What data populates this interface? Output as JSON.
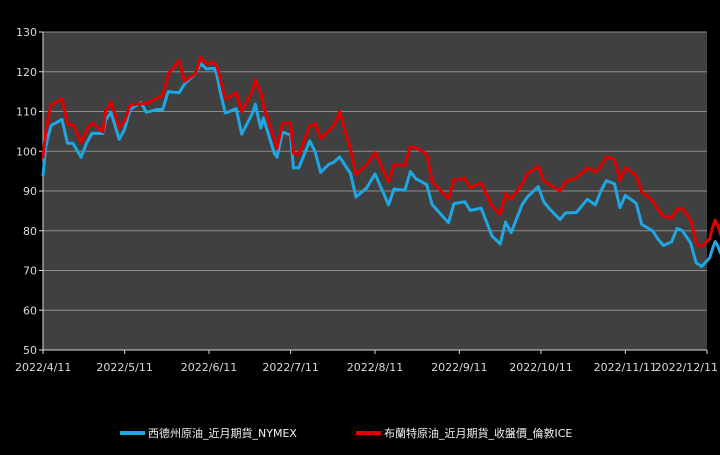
{
  "chart_data": {
    "type": "line",
    "title": "",
    "xlabel": "",
    "ylabel": "",
    "ylim": [
      50,
      130
    ],
    "yticks": [
      50,
      60,
      70,
      80,
      90,
      100,
      110,
      120,
      130
    ],
    "x_start": "2022/4/11",
    "x_end": "2022/12/11",
    "xticks": [
      "2022/4/11",
      "2022/5/11",
      "2022/6/11",
      "2022/7/11",
      "2022/8/11",
      "2022/9/11",
      "2022/10/11",
      "2022/11/11",
      "2022/12/11"
    ],
    "grid": true,
    "legend_position": "bottom",
    "colors": {
      "background": "#000000",
      "plot_area": "#404040",
      "grid": "#8c8c8c",
      "axis": "#d9d9d9"
    },
    "series": [
      {
        "name": "西德州原油_近月期貨_NYMEX",
        "color": "#1ea7e1",
        "points": [
          [
            "2022/4/11",
            94
          ],
          [
            "2022/4/12",
            101
          ],
          [
            "2022/4/13",
            104
          ],
          [
            "2022/4/14",
            106.5
          ],
          [
            "2022/4/18",
            108
          ],
          [
            "2022/4/20",
            102
          ],
          [
            "2022/4/22",
            102
          ],
          [
            "2022/4/25",
            98.5
          ],
          [
            "2022/4/27",
            102
          ],
          [
            "2022/4/29",
            104.5
          ],
          [
            "2022/5/3",
            104.5
          ],
          [
            "2022/5/4",
            107.8
          ],
          [
            "2022/5/6",
            109.8
          ],
          [
            "2022/5/9",
            103
          ],
          [
            "2022/5/11",
            105.5
          ],
          [
            "2022/5/13",
            110.5
          ],
          [
            "2022/5/17",
            112.3
          ],
          [
            "2022/5/19",
            109.8
          ],
          [
            "2022/5/23",
            110.5
          ],
          [
            "2022/5/25",
            110.5
          ],
          [
            "2022/5/27",
            115
          ],
          [
            "2022/5/31",
            114.7
          ],
          [
            "2022/6/2",
            116.9
          ],
          [
            "2022/6/6",
            119.5
          ],
          [
            "2022/6/8",
            122.1
          ],
          [
            "2022/6/10",
            120.7
          ],
          [
            "2022/6/13",
            120.9
          ],
          [
            "2022/6/14",
            118.9
          ],
          [
            "2022/6/15",
            115.3
          ],
          [
            "2022/6/17",
            109.6
          ],
          [
            "2022/6/21",
            110.7
          ],
          [
            "2022/6/23",
            104.3
          ],
          [
            "2022/6/27",
            109.6
          ],
          [
            "2022/6/28",
            111.8
          ],
          [
            "2022/6/30",
            105.8
          ],
          [
            "2022/7/1",
            108.4
          ],
          [
            "2022/7/5",
            99.5
          ],
          [
            "2022/7/6",
            98.5
          ],
          [
            "2022/7/8",
            104.8
          ],
          [
            "2022/7/11",
            104.1
          ],
          [
            "2022/7/12",
            95.8
          ],
          [
            "2022/7/14",
            95.8
          ],
          [
            "2022/7/18",
            102.6
          ],
          [
            "2022/7/20",
            99.9
          ],
          [
            "2022/7/22",
            94.7
          ],
          [
            "2022/7/25",
            96.7
          ],
          [
            "2022/7/27",
            97.3
          ],
          [
            "2022/7/29",
            98.6
          ],
          [
            "2022/8/2",
            94.4
          ],
          [
            "2022/8/4",
            88.5
          ],
          [
            "2022/8/8",
            90.8
          ],
          [
            "2022/8/11",
            94.3
          ],
          [
            "2022/8/16",
            86.5
          ],
          [
            "2022/8/18",
            90.5
          ],
          [
            "2022/8/22",
            90.2
          ],
          [
            "2022/8/24",
            94.9
          ],
          [
            "2022/8/26",
            93.1
          ],
          [
            "2022/8/30",
            91.6
          ],
          [
            "2022/9/1",
            86.6
          ],
          [
            "2022/9/7",
            82
          ],
          [
            "2022/9/9",
            86.8
          ],
          [
            "2022/9/13",
            87.3
          ],
          [
            "2022/9/15",
            85.1
          ],
          [
            "2022/9/19",
            85.7
          ],
          [
            "2022/9/23",
            78.7
          ],
          [
            "2022/9/26",
            76.7
          ],
          [
            "2022/9/28",
            82.2
          ],
          [
            "2022/9/30",
            79.5
          ],
          [
            "2022/10/4",
            86.5
          ],
          [
            "2022/10/6",
            88.5
          ],
          [
            "2022/10/10",
            91.1
          ],
          [
            "2022/10/12",
            87.3
          ],
          [
            "2022/10/14",
            85.6
          ],
          [
            "2022/10/18",
            82.8
          ],
          [
            "2022/10/20",
            84.5
          ],
          [
            "2022/10/24",
            84.6
          ],
          [
            "2022/10/28",
            87.9
          ],
          [
            "2022/10/31",
            86.5
          ],
          [
            "2022/11/2",
            90
          ],
          [
            "2022/11/4",
            92.6
          ],
          [
            "2022/11/7",
            91.8
          ],
          [
            "2022/11/9",
            85.8
          ],
          [
            "2022/11/11",
            88.9
          ],
          [
            "2022/11/15",
            86.9
          ],
          [
            "2022/11/17",
            81.6
          ],
          [
            "2022/11/21",
            80
          ],
          [
            "2022/11/23",
            77.9
          ],
          [
            "2022/11/25",
            76.3
          ],
          [
            "2022/11/28",
            77.2
          ],
          [
            "2022/11/30",
            80.6
          ],
          [
            "2022/12/2",
            80
          ],
          [
            "2022/12/5",
            76.9
          ],
          [
            "2022/12/7",
            72
          ],
          [
            "2022/12/8",
            71.5
          ],
          [
            "2022/12/9",
            71
          ],
          [
            "2022/12/12",
            73.2
          ],
          [
            "2022/12/13",
            75.4
          ],
          [
            "2022/12/14",
            77.3
          ],
          [
            "2022/12/15",
            76.1
          ],
          [
            "2022/12/16",
            74.3
          ]
        ]
      },
      {
        "name": "布蘭特原油_近月期貨_收盤價_倫敦ICE",
        "color": "#e00000",
        "points": [
          [
            "2022/4/11",
            98.5
          ],
          [
            "2022/4/12",
            104.6
          ],
          [
            "2022/4/13",
            108.8
          ],
          [
            "2022/4/14",
            111.7
          ],
          [
            "2022/4/18",
            113.2
          ],
          [
            "2022/4/20",
            106.8
          ],
          [
            "2022/4/22",
            106.7
          ],
          [
            "2022/4/25",
            102.3
          ],
          [
            "2022/4/27",
            105.3
          ],
          [
            "2022/4/29",
            107.1
          ],
          [
            "2022/5/3",
            104.9
          ],
          [
            "2022/5/4",
            110.1
          ],
          [
            "2022/5/6",
            112.4
          ],
          [
            "2022/5/9",
            105.9
          ],
          [
            "2022/5/11",
            107.5
          ],
          [
            "2022/5/13",
            111.6
          ],
          [
            "2022/5/17",
            112
          ],
          [
            "2022/5/19",
            112
          ],
          [
            "2022/5/23",
            113.4
          ],
          [
            "2022/5/25",
            114
          ],
          [
            "2022/5/27",
            119.4
          ],
          [
            "2022/5/31",
            122.8
          ],
          [
            "2022/6/2",
            117.6
          ],
          [
            "2022/6/6",
            119.5
          ],
          [
            "2022/6/8",
            123.6
          ],
          [
            "2022/6/10",
            122
          ],
          [
            "2022/6/13",
            122.3
          ],
          [
            "2022/6/14",
            121.2
          ],
          [
            "2022/6/15",
            118.5
          ],
          [
            "2022/6/17",
            113.1
          ],
          [
            "2022/6/21",
            114.7
          ],
          [
            "2022/6/23",
            110
          ],
          [
            "2022/6/27",
            115.1
          ],
          [
            "2022/6/28",
            118
          ],
          [
            "2022/6/30",
            114.8
          ],
          [
            "2022/7/1",
            111.6
          ],
          [
            "2022/7/5",
            102.8
          ],
          [
            "2022/7/6",
            100.7
          ],
          [
            "2022/7/8",
            107
          ],
          [
            "2022/7/11",
            107.1
          ],
          [
            "2022/7/12",
            99.5
          ],
          [
            "2022/7/14",
            99.1
          ],
          [
            "2022/7/18",
            106.3
          ],
          [
            "2022/7/20",
            107
          ],
          [
            "2022/7/22",
            103.2
          ],
          [
            "2022/7/25",
            105.2
          ],
          [
            "2022/7/27",
            106.6
          ],
          [
            "2022/7/29",
            110
          ],
          [
            "2022/8/2",
            100.5
          ],
          [
            "2022/8/4",
            94.1
          ],
          [
            "2022/8/8",
            96.7
          ],
          [
            "2022/8/11",
            99.6
          ],
          [
            "2022/8/16",
            92.3
          ],
          [
            "2022/8/18",
            96.6
          ],
          [
            "2022/8/22",
            96.5
          ],
          [
            "2022/8/24",
            101.2
          ],
          [
            "2022/8/26",
            100.9
          ],
          [
            "2022/8/30",
            99.3
          ],
          [
            "2022/9/1",
            92.4
          ],
          [
            "2022/9/7",
            88
          ],
          [
            "2022/9/9",
            92.8
          ],
          [
            "2022/9/13",
            93.2
          ],
          [
            "2022/9/15",
            90.8
          ],
          [
            "2022/9/19",
            92
          ],
          [
            "2022/9/23",
            86.2
          ],
          [
            "2022/9/26",
            84.1
          ],
          [
            "2022/9/28",
            89.3
          ],
          [
            "2022/9/30",
            87.9
          ],
          [
            "2022/10/4",
            91.8
          ],
          [
            "2022/10/6",
            94.4
          ],
          [
            "2022/10/10",
            96.2
          ],
          [
            "2022/10/12",
            92.5
          ],
          [
            "2022/10/14",
            91.6
          ],
          [
            "2022/10/18",
            90
          ],
          [
            "2022/10/20",
            92.4
          ],
          [
            "2022/10/24",
            93.3
          ],
          [
            "2022/10/28",
            95.8
          ],
          [
            "2022/10/31",
            94.8
          ],
          [
            "2022/11/2",
            96.2
          ],
          [
            "2022/11/4",
            98.6
          ],
          [
            "2022/11/7",
            97.9
          ],
          [
            "2022/11/9",
            92.7
          ],
          [
            "2022/11/11",
            95.9
          ],
          [
            "2022/11/15",
            93.8
          ],
          [
            "2022/11/17",
            89.8
          ],
          [
            "2022/11/21",
            87.5
          ],
          [
            "2022/11/23",
            85.4
          ],
          [
            "2022/11/25",
            83.6
          ],
          [
            "2022/11/28",
            83.2
          ],
          [
            "2022/11/30",
            85.4
          ],
          [
            "2022/12/2",
            85.6
          ],
          [
            "2022/12/5",
            82.7
          ],
          [
            "2022/12/7",
            77.2
          ],
          [
            "2022/12/8",
            76.2
          ],
          [
            "2022/12/9",
            76.1
          ],
          [
            "2022/12/12",
            78
          ],
          [
            "2022/12/13",
            80.7
          ],
          [
            "2022/12/14",
            82.7
          ],
          [
            "2022/12/15",
            81.2
          ],
          [
            "2022/12/16",
            79
          ]
        ]
      }
    ]
  }
}
